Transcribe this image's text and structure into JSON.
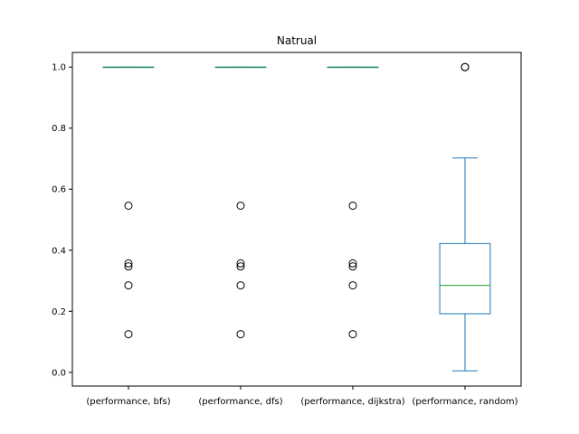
{
  "chart_data": {
    "type": "box",
    "title": "Natrual",
    "xlabel": "",
    "ylabel": "",
    "ylim": [
      -0.045,
      1.048
    ],
    "yticks": [
      "0.0",
      "0.2",
      "0.4",
      "0.6",
      "0.8",
      "1.0"
    ],
    "categories": [
      "(performance, bfs)",
      "(performance, dfs)",
      "(performance, dijkstra)",
      "(performance, random)"
    ],
    "boxes": [
      {
        "min": 1.0,
        "q1": 1.0,
        "median": 1.0,
        "q3": 1.0,
        "max": 1.0,
        "outliers": [
          0.546,
          0.357,
          0.347,
          0.285,
          0.125
        ]
      },
      {
        "min": 1.0,
        "q1": 1.0,
        "median": 1.0,
        "q3": 1.0,
        "max": 1.0,
        "outliers": [
          0.546,
          0.357,
          0.347,
          0.285,
          0.125
        ]
      },
      {
        "min": 1.0,
        "q1": 1.0,
        "median": 1.0,
        "q3": 1.0,
        "max": 1.0,
        "outliers": [
          0.546,
          0.357,
          0.347,
          0.285,
          0.125
        ]
      },
      {
        "min": 0.005,
        "q1": 0.192,
        "median": 0.285,
        "q3": 0.422,
        "max": 0.702,
        "outliers": [
          1.0,
          1.0
        ]
      }
    ],
    "grid": false,
    "colors": {
      "box": "#1f77b4",
      "median": "#2ca02c",
      "outlier": "#000000"
    }
  }
}
